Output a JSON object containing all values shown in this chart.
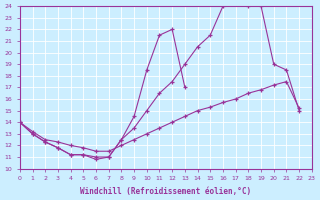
{
  "xlabel": "Windchill (Refroidissement éolien,°C)",
  "bg_color": "#cceeff",
  "line_color": "#993399",
  "xmin": 0,
  "xmax": 23,
  "ymin": 10,
  "ymax": 24,
  "line1_x": [
    0,
    1,
    2,
    3,
    4,
    5,
    6,
    7,
    8,
    9,
    10,
    11,
    12,
    13
  ],
  "line1_y": [
    14,
    13.0,
    12.3,
    11.8,
    11.2,
    11.2,
    10.8,
    11.0,
    12.5,
    14.5,
    18.5,
    21.5,
    22.0,
    17.0
  ],
  "line2_x": [
    0,
    1,
    2,
    3,
    4,
    5,
    6,
    7,
    8,
    9,
    10,
    11,
    12,
    13,
    14,
    15,
    16,
    17,
    18,
    19,
    20,
    21,
    22
  ],
  "line2_y": [
    14,
    13.0,
    12.3,
    11.8,
    11.2,
    11.2,
    11.0,
    11.0,
    12.5,
    13.5,
    15.0,
    16.5,
    17.5,
    19.0,
    20.5,
    21.5,
    24.0,
    24.2,
    24.0,
    24.0,
    19.0,
    18.5,
    15.0
  ],
  "line3_x": [
    0,
    1,
    2,
    3,
    4,
    5,
    6,
    7,
    8,
    9,
    10,
    11,
    12,
    13,
    14,
    15,
    16,
    17,
    18,
    19,
    20,
    21,
    22
  ],
  "line3_y": [
    14,
    13.2,
    12.5,
    12.3,
    12.0,
    11.8,
    11.5,
    11.5,
    12.0,
    12.5,
    13.0,
    13.5,
    14.0,
    14.5,
    15.0,
    15.3,
    15.7,
    16.0,
    16.5,
    16.8,
    17.2,
    17.5,
    15.2
  ]
}
